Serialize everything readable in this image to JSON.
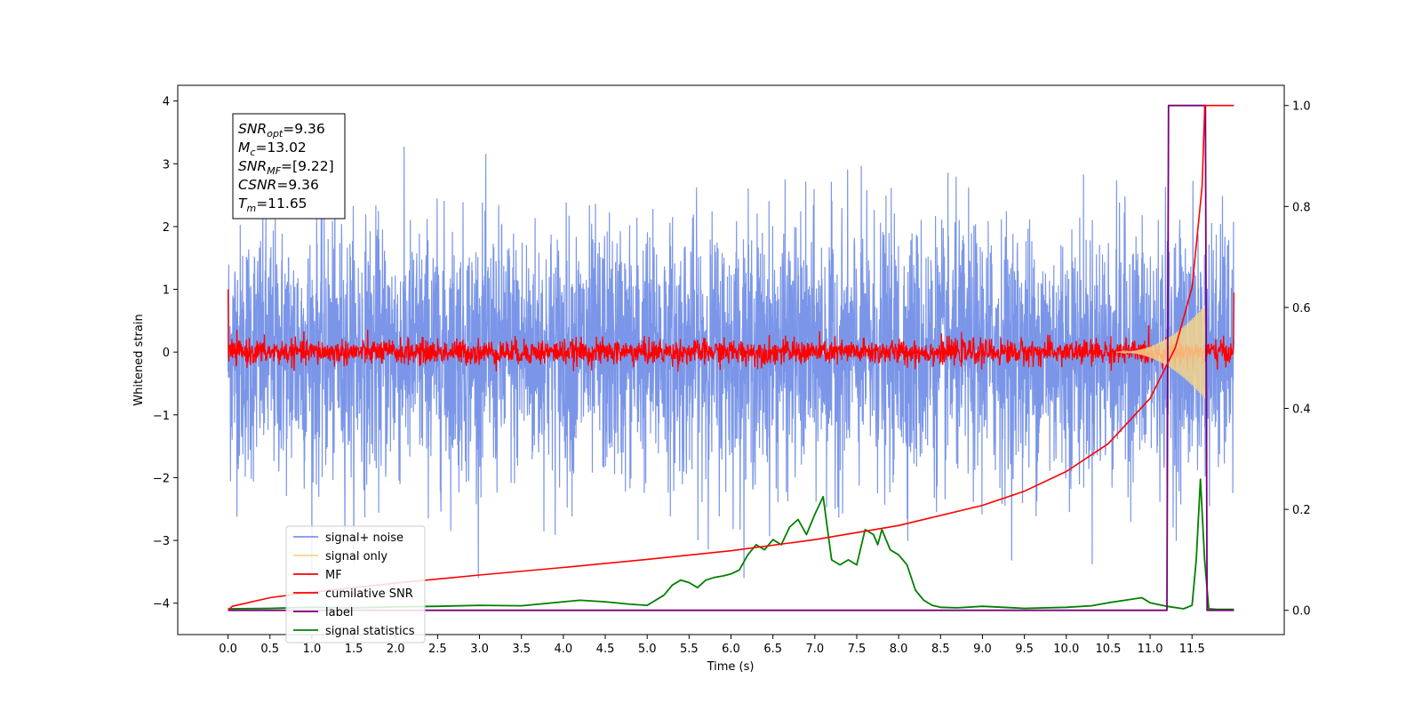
{
  "chart_data": {
    "type": "line",
    "xlabel": "Time (s)",
    "ylabel": "Whitened strain",
    "xlim": [
      -0.6,
      12.6
    ],
    "ylim_left": [
      -4.5,
      4.25
    ],
    "ylim_right": [
      -0.048,
      1.04
    ],
    "x_ticks": [
      0.0,
      0.5,
      1.0,
      1.5,
      2.0,
      2.5,
      3.0,
      3.5,
      4.0,
      4.5,
      5.0,
      5.5,
      6.0,
      6.5,
      7.0,
      7.5,
      8.0,
      8.5,
      9.0,
      9.5,
      10.0,
      10.5,
      11.0,
      11.5
    ],
    "x_tick_labels": [
      "0.0",
      "0.5",
      "1.0",
      "1.5",
      "2.0",
      "2.5",
      "3.0",
      "3.5",
      "4.0",
      "4.5",
      "5.0",
      "5.5",
      "6.0",
      "6.5",
      "7.0",
      "7.5",
      "8.0",
      "8.5",
      "9.0",
      "9.5",
      "10.0",
      "10.5",
      "11.0",
      "11.5"
    ],
    "y_ticks_left": [
      -4,
      -3,
      -2,
      -1,
      0,
      1,
      2,
      3,
      4
    ],
    "y_tick_labels_left": [
      "−4",
      "−3",
      "−2",
      "−1",
      "0",
      "1",
      "2",
      "3",
      "4"
    ],
    "y_ticks_right": [
      0.0,
      0.2,
      0.4,
      0.6,
      0.8,
      1.0
    ],
    "y_tick_labels_right": [
      "0.0",
      "0.2",
      "0.4",
      "0.6",
      "0.8",
      "1.0"
    ],
    "grid": false,
    "legend_position": "lower-left",
    "annotation_box": [
      {
        "sym": "SNR",
        "sub": "opt",
        "val": "=9.36"
      },
      {
        "sym": "M",
        "sub": "c",
        "val": "=13.02"
      },
      {
        "sym": "SNR",
        "sub": "MF",
        "val": "=[9.22]"
      },
      {
        "sym": "CSNR",
        "sub": "",
        "val": "=9.36"
      },
      {
        "sym": "T",
        "sub": "m",
        "val": "=11.65"
      }
    ],
    "series": [
      {
        "name": "signal+ noise",
        "color": "#7b96e8",
        "axis": "left",
        "kind": "noise",
        "x_range": [
          0.0,
          12.0
        ],
        "std": 1.0,
        "extreme_min": -3.6,
        "extreme_max": 3.85
      },
      {
        "name": "signal only",
        "color": "#f5d58c",
        "axis": "left",
        "kind": "chirp",
        "x_range": [
          10.6,
          11.65
        ],
        "peak_amplitude": 0.75
      },
      {
        "name": "MF",
        "color": "#ff0000",
        "axis": "left",
        "kind": "noise",
        "x_range": [
          0.0,
          12.0
        ],
        "std": 0.1,
        "edge_values": [
          1.0,
          0.95
        ]
      },
      {
        "name": "cumilative SNR",
        "color": "#ff0000",
        "axis": "right",
        "kind": "curve",
        "x": [
          0.0,
          0.05,
          0.5,
          1.0,
          2.0,
          3.0,
          4.0,
          5.0,
          6.0,
          7.0,
          8.0,
          9.0,
          9.5,
          10.0,
          10.5,
          11.0,
          11.3,
          11.5,
          11.62,
          11.65,
          11.65,
          12.0
        ],
        "y": [
          0.0,
          0.008,
          0.025,
          0.036,
          0.054,
          0.07,
          0.085,
          0.101,
          0.118,
          0.14,
          0.168,
          0.208,
          0.236,
          0.275,
          0.33,
          0.42,
          0.52,
          0.64,
          0.84,
          0.99,
          1.0,
          1.0
        ]
      },
      {
        "name": "label",
        "color": "#7a007a",
        "axis": "right",
        "kind": "step",
        "x": [
          0.0,
          11.2,
          11.22,
          11.66,
          11.68,
          12.0
        ],
        "y": [
          0.0,
          0.0,
          1.0,
          1.0,
          0.0,
          0.0
        ]
      },
      {
        "name": "signal statistics",
        "color": "#008000",
        "axis": "right",
        "kind": "curve",
        "x": [
          0.0,
          0.5,
          1.0,
          1.5,
          2.0,
          2.5,
          3.0,
          3.5,
          4.0,
          4.2,
          4.5,
          4.8,
          5.0,
          5.2,
          5.3,
          5.4,
          5.5,
          5.6,
          5.7,
          5.8,
          5.9,
          6.0,
          6.1,
          6.2,
          6.3,
          6.4,
          6.5,
          6.6,
          6.7,
          6.8,
          6.9,
          7.0,
          7.1,
          7.2,
          7.3,
          7.4,
          7.5,
          7.6,
          7.7,
          7.75,
          7.8,
          7.9,
          8.0,
          8.1,
          8.2,
          8.3,
          8.4,
          8.5,
          8.7,
          9.0,
          9.5,
          10.0,
          10.3,
          10.5,
          10.7,
          10.9,
          11.0,
          11.2,
          11.4,
          11.5,
          11.55,
          11.6,
          11.65,
          11.7,
          11.8,
          12.0
        ],
        "y": [
          0.003,
          0.004,
          0.006,
          0.005,
          0.007,
          0.008,
          0.01,
          0.009,
          0.017,
          0.02,
          0.017,
          0.012,
          0.01,
          0.03,
          0.05,
          0.06,
          0.055,
          0.045,
          0.06,
          0.065,
          0.068,
          0.072,
          0.08,
          0.11,
          0.13,
          0.12,
          0.14,
          0.13,
          0.165,
          0.18,
          0.15,
          0.19,
          0.225,
          0.1,
          0.09,
          0.1,
          0.09,
          0.16,
          0.15,
          0.13,
          0.16,
          0.12,
          0.11,
          0.09,
          0.04,
          0.02,
          0.01,
          0.006,
          0.005,
          0.008,
          0.004,
          0.006,
          0.009,
          0.015,
          0.02,
          0.025,
          0.015,
          0.008,
          0.003,
          0.01,
          0.1,
          0.26,
          0.1,
          0.003,
          0.002,
          0.002
        ]
      }
    ]
  }
}
